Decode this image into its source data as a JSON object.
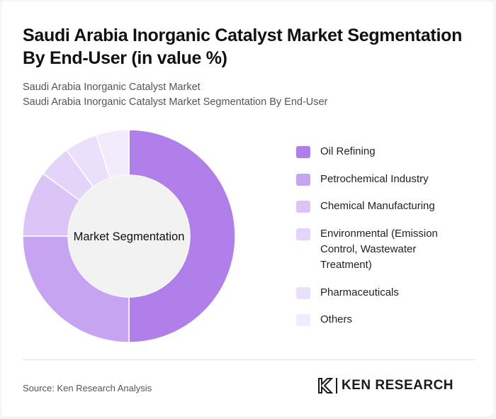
{
  "title": "Saudi Arabia Inorganic Catalyst Market Segmentation By End-User (in value %)",
  "subtitle_1": "Saudi Arabia Inorganic Catalyst Market",
  "subtitle_2": "Saudi Arabia Inorganic Catalyst Market Segmentation By End-User",
  "chart_data": {
    "type": "pie",
    "donut": true,
    "center_label": "Market Segmentation",
    "legend_position": "right",
    "categories": [
      "Oil Refining",
      "Petrochemical Industry",
      "Chemical Manufacturing",
      "Environmental (Emission Control, Wastewater Treatment)",
      "Pharmaceuticals",
      "Others"
    ],
    "values": [
      50,
      25,
      10,
      5,
      5,
      5
    ],
    "colors": [
      "#b07fe9",
      "#c7a4f2",
      "#dbc5f7",
      "#e4d4f9",
      "#ebe0fb",
      "#f2ebfc"
    ]
  },
  "source": "Source: Ken Research Analysis",
  "logo": {
    "text": "KEN RESEARCH"
  }
}
